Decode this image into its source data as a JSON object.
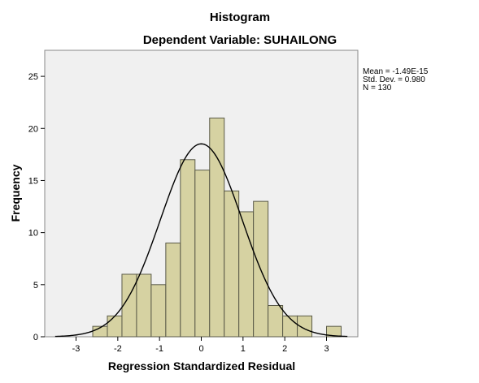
{
  "chart_data": {
    "type": "bar",
    "title": "Histogram",
    "subtitle": "Dependent Variable: SUHAILONG",
    "xlabel": "Regression Standardized Residual",
    "ylabel": "Frequency",
    "xlim": [
      -3.75,
      3.75
    ],
    "ylim": [
      0,
      27.5
    ],
    "xticks": [
      -3,
      -2,
      -1,
      0,
      1,
      2,
      3
    ],
    "yticks": [
      0,
      5,
      10,
      15,
      20,
      25
    ],
    "bin_start": -2.6,
    "bin_width": 0.35,
    "values": [
      1,
      2,
      6,
      6,
      5,
      9,
      17,
      16,
      21,
      14,
      12,
      13,
      3,
      2,
      2,
      0,
      1
    ],
    "normal_curve": {
      "mean": 0,
      "sd": 0.98,
      "n": 130
    },
    "stats": [
      "Mean = -1.49E-15",
      "Std. Dev. = 0.980",
      "N = 130"
    ],
    "colors": {
      "bar_fill": "#d6d2a2",
      "bar_stroke": "#5a5a48",
      "plot_bg": "#f0f0f0",
      "curve": "#000000"
    }
  }
}
